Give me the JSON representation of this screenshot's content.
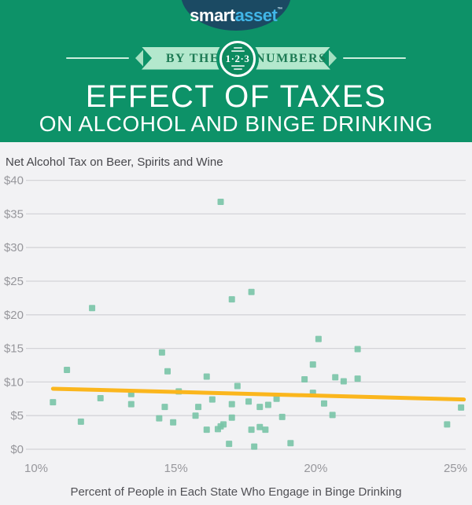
{
  "header": {
    "logo": {
      "part1": "smart",
      "part2": "asset",
      "tm": "™"
    },
    "banner": {
      "left": "BY THE",
      "right": "NUMBERS",
      "circle": "1·2·3"
    },
    "title": "EFFECT OF TAXES",
    "subtitle": "ON ALCOHOL AND BINGE DRINKING"
  },
  "chart_data": {
    "type": "scatter",
    "title": "Net Alcohol Tax on Beer, Spirits and Wine",
    "xlabel": "Percent of People in Each State Who Engage in Binge Drinking",
    "ylabel": "",
    "x_ticks": [
      "10%",
      "15%",
      "20%",
      "25%"
    ],
    "x_tick_values": [
      10,
      15,
      20,
      25
    ],
    "y_ticks": [
      "$0",
      "$5",
      "$10",
      "$15",
      "$20",
      "$25",
      "$30",
      "$35",
      "$40"
    ],
    "y_tick_values": [
      0,
      5,
      10,
      15,
      20,
      25,
      30,
      35,
      40
    ],
    "xlim": [
      9.6,
      25.4
    ],
    "ylim": [
      0,
      40
    ],
    "grid": true,
    "point_color": "#79c4a7",
    "points": [
      [
        10.6,
        7.0
      ],
      [
        11.1,
        11.8
      ],
      [
        11.6,
        4.1
      ],
      [
        12.0,
        21.0
      ],
      [
        12.3,
        7.6
      ],
      [
        13.4,
        8.2
      ],
      [
        13.4,
        6.7
      ],
      [
        14.4,
        4.6
      ],
      [
        14.5,
        14.4
      ],
      [
        14.6,
        6.3
      ],
      [
        14.7,
        11.6
      ],
      [
        14.9,
        4.0
      ],
      [
        15.1,
        8.6
      ],
      [
        15.7,
        5.0
      ],
      [
        15.8,
        6.3
      ],
      [
        16.1,
        10.8
      ],
      [
        16.1,
        2.9
      ],
      [
        16.3,
        7.4
      ],
      [
        16.5,
        3.0
      ],
      [
        16.6,
        36.8
      ],
      [
        16.6,
        3.4
      ],
      [
        16.7,
        3.7
      ],
      [
        16.9,
        0.8
      ],
      [
        17.0,
        6.7
      ],
      [
        17.0,
        4.7
      ],
      [
        17.0,
        22.3
      ],
      [
        17.2,
        9.4
      ],
      [
        17.6,
        7.1
      ],
      [
        17.7,
        2.9
      ],
      [
        17.7,
        23.4
      ],
      [
        17.8,
        0.4
      ],
      [
        18.0,
        6.3
      ],
      [
        18.0,
        3.3
      ],
      [
        18.2,
        2.9
      ],
      [
        18.3,
        6.6
      ],
      [
        18.6,
        7.5
      ],
      [
        18.8,
        4.8
      ],
      [
        19.1,
        0.9
      ],
      [
        19.6,
        10.4
      ],
      [
        19.9,
        12.6
      ],
      [
        19.9,
        8.4
      ],
      [
        20.1,
        16.4
      ],
      [
        20.3,
        6.8
      ],
      [
        20.6,
        5.1
      ],
      [
        20.7,
        10.7
      ],
      [
        21.0,
        10.1
      ],
      [
        21.5,
        14.9
      ],
      [
        21.5,
        10.5
      ],
      [
        24.7,
        3.7
      ],
      [
        25.2,
        6.2
      ]
    ],
    "trend_line": {
      "x1": 10.6,
      "y1": 9.0,
      "x2": 25.3,
      "y2": 7.4,
      "color": "#fbb61d"
    }
  },
  "colors": {
    "header_green": "#0d9268",
    "oval_navy": "#1b4a63",
    "logo_blue": "#41b6e8",
    "ribbon_mint": "#b3e8cd",
    "ribbon_text_green": "#1e7b55",
    "badge_green": "#0c8a5f",
    "chart_background": "#f2f2f4",
    "gridline": "#d4d4d8",
    "tick_text": "#97979c"
  }
}
